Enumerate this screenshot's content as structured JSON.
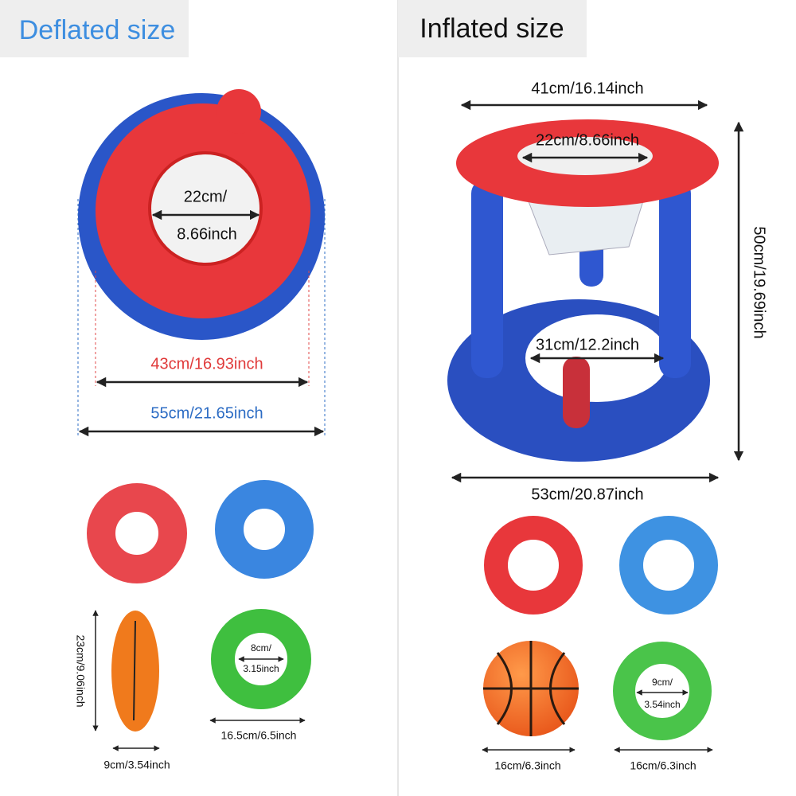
{
  "deflated": {
    "title": "Deflated size",
    "hoop": {
      "inner_label": [
        "22cm/",
        "8.66inch"
      ],
      "ring_label": "43cm/16.93inch",
      "base_label": "55cm/21.65inch"
    },
    "ball_height": "23cm/9.06inch",
    "ball_width": "9cm/3.54inch",
    "ring_inner": [
      "8cm/",
      "3.15inch"
    ],
    "ring_outer": "16.5cm/6.5inch"
  },
  "inflated": {
    "title": "Inflated size",
    "hoop": {
      "top_width": "41cm/16.14inch",
      "top_inner": "22cm/8.66inch",
      "height": "50cm/19.69inch",
      "base_inner": "31cm/12.2inch",
      "base_width": "53cm/20.87inch"
    },
    "ring_inner": [
      "9cm/",
      "3.54inch"
    ],
    "ball_size": "16cm/6.3inch",
    "ring_size": "16cm/6.3inch"
  }
}
